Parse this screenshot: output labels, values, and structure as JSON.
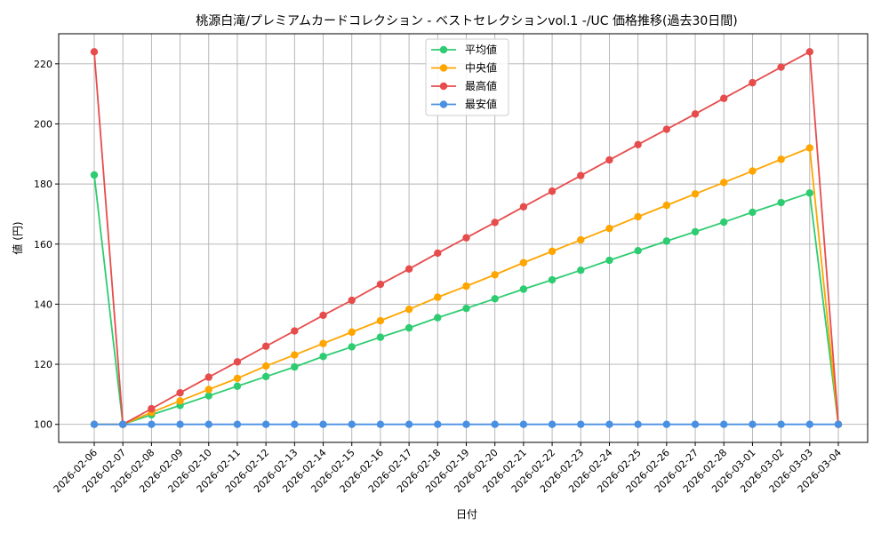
{
  "chart_data": {
    "type": "line",
    "title": "桃源白滝/プレミアムカードコレクション - ベストセレクションvol.1 -/UC 価格推移(過去30日間)",
    "xlabel": "日付",
    "ylabel": "値 (円)",
    "ylim": [
      94,
      230
    ],
    "yticks": [
      100,
      120,
      140,
      160,
      180,
      200,
      220
    ],
    "grid": true,
    "legend_position": "top-center",
    "categories": [
      "2026-02-06",
      "2026-02-07",
      "2026-02-08",
      "2026-02-09",
      "2026-02-10",
      "2026-02-11",
      "2026-02-12",
      "2026-02-13",
      "2026-02-14",
      "2026-02-15",
      "2026-02-16",
      "2026-02-17",
      "2026-02-18",
      "2026-02-19",
      "2026-02-20",
      "2026-02-21",
      "2026-02-22",
      "2026-02-23",
      "2026-02-24",
      "2026-02-25",
      "2026-02-26",
      "2026-02-27",
      "2026-02-28",
      "2026-03-01",
      "2026-03-02",
      "2026-03-03",
      "2026-03-04"
    ],
    "series": [
      {
        "name": "平均値",
        "color": "#2ecc71",
        "values": [
          183,
          100,
          103.2,
          106.3,
          109.5,
          112.7,
          115.9,
          119.1,
          122.6,
          125.8,
          129,
          132.1,
          135.5,
          138.6,
          141.8,
          145,
          148.1,
          151.3,
          154.6,
          157.8,
          161,
          164.1,
          167.3,
          170.6,
          173.8,
          177,
          100
        ]
      },
      {
        "name": "中央値",
        "color": "#ffa500",
        "values": [
          100,
          100,
          104,
          107.8,
          111.6,
          115.3,
          119.4,
          123.1,
          126.9,
          130.7,
          134.5,
          138.3,
          142.3,
          146,
          149.8,
          153.8,
          157.6,
          161.4,
          165.2,
          169.1,
          172.9,
          176.7,
          180.5,
          184.3,
          188.2,
          192,
          100
        ]
      },
      {
        "name": "最高値",
        "color": "#e74c4c",
        "values": [
          224,
          100,
          105.2,
          110.5,
          115.7,
          120.8,
          126,
          131.1,
          136.3,
          141.3,
          146.6,
          151.7,
          157,
          162.1,
          167.2,
          172.4,
          177.6,
          182.8,
          188,
          193.1,
          198.2,
          203.3,
          208.5,
          213.7,
          218.9,
          224,
          100
        ]
      },
      {
        "name": "最安値",
        "color": "#4a90e2",
        "values": [
          100,
          100,
          100,
          100,
          100,
          100,
          100,
          100,
          100,
          100,
          100,
          100,
          100,
          100,
          100,
          100,
          100,
          100,
          100,
          100,
          100,
          100,
          100,
          100,
          100,
          100,
          100
        ]
      }
    ]
  }
}
